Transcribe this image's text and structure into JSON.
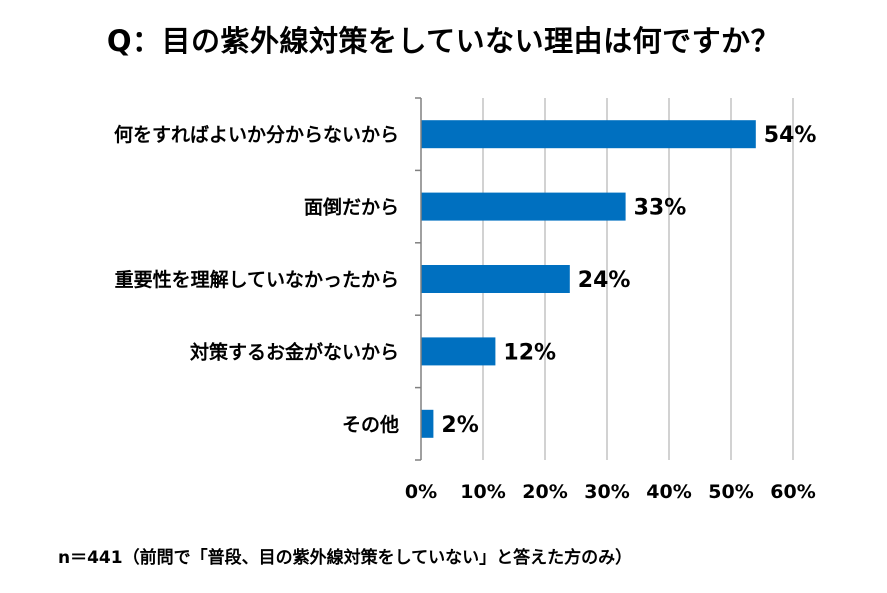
{
  "title": "Q：目の紫外線対策をしていない理由は何ですか？",
  "note": "n＝441（前問で「普段、目の紫外線対策をしていない」と答えた方のみ）",
  "colors": {
    "bar": "#0070C0",
    "grid": "#A6A6A6",
    "axis": "#808080",
    "text": "#000000"
  },
  "chart_data": {
    "type": "bar",
    "orientation": "horizontal",
    "categories": [
      "何をすればよいか分からないから",
      "面倒だから",
      "重要性を理解していなかったから",
      "対策するお金がないから",
      "その他"
    ],
    "values": [
      54,
      33,
      24,
      12,
      2
    ],
    "value_labels": [
      "54%",
      "33%",
      "24%",
      "12%",
      "2%"
    ],
    "xlim": [
      0,
      60
    ],
    "xticks": [
      0,
      10,
      20,
      30,
      40,
      50,
      60
    ],
    "xtick_labels": [
      "0%",
      "10%",
      "20%",
      "30%",
      "40%",
      "50%",
      "60%"
    ],
    "grid": true,
    "legend": "none"
  }
}
